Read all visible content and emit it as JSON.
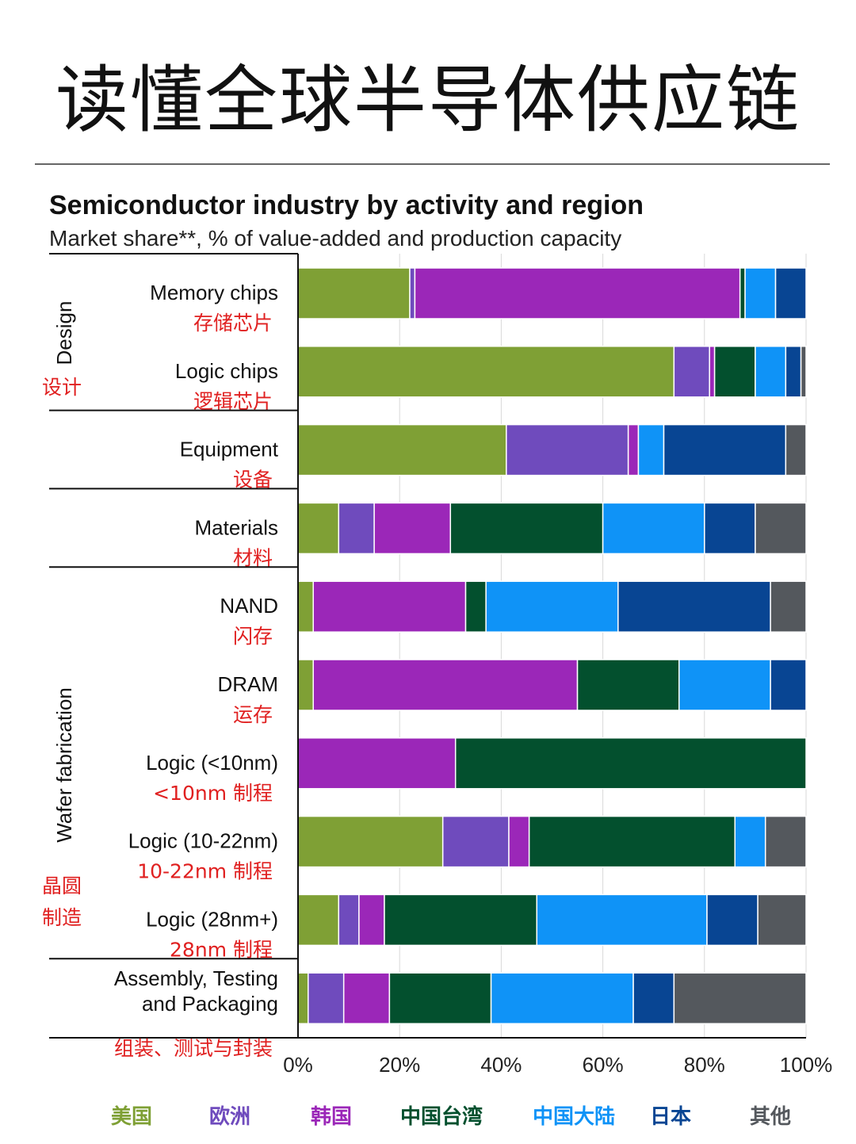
{
  "page_title": "读懂全球半导体供应链",
  "chart_data": {
    "type": "bar",
    "orientation": "horizontal",
    "stacked": true,
    "title": "Semiconductor industry by activity and region",
    "subtitle": "Market share**, % of value-added and production capacity",
    "xlim": [
      0,
      100
    ],
    "x_ticks": [
      "0%",
      "20%",
      "40%",
      "60%",
      "80%",
      "100%"
    ],
    "grid": true,
    "legend_position": "bottom",
    "groups": [
      {
        "label": "Design",
        "label_cn": "设计",
        "rows": 2
      },
      {
        "label": "",
        "label_cn": "",
        "rows": 1
      },
      {
        "label": "",
        "label_cn": "",
        "rows": 1
      },
      {
        "label": "Wafer fabrication",
        "label_cn": "晶圆\n制造",
        "rows": 5
      },
      {
        "label": "",
        "label_cn": "",
        "rows": 1
      }
    ],
    "categories": [
      {
        "en": "Memory chips",
        "cn": "存储芯片"
      },
      {
        "en": "Logic chips",
        "cn": "逻辑芯片"
      },
      {
        "en": "Equipment",
        "cn": "设备"
      },
      {
        "en": "Materials",
        "cn": "材料"
      },
      {
        "en": "NAND",
        "cn": "闪存"
      },
      {
        "en": "DRAM",
        "cn": "运存"
      },
      {
        "en": "Logic (<10nm)",
        "cn": "<10nm 制程"
      },
      {
        "en": "Logic (10-22nm)",
        "cn": "10-22nm 制程"
      },
      {
        "en": "Logic (28nm+)",
        "cn": "28nm 制程"
      },
      {
        "en": "Assembly, Testing\nand Packaging",
        "cn": "组装、测试与封装"
      }
    ],
    "series": [
      {
        "name": "美国",
        "color": "#7fa035",
        "values": [
          22,
          74,
          41,
          8,
          3,
          3,
          0,
          28.5,
          8,
          2
        ]
      },
      {
        "name": "欧洲",
        "color": "#6f4bbd",
        "values": [
          1,
          7,
          24,
          7,
          0,
          0,
          0,
          13,
          4,
          7
        ]
      },
      {
        "name": "韩国",
        "color": "#9b27b8",
        "values": [
          64,
          1,
          2,
          15,
          30,
          52,
          31,
          4,
          5,
          9
        ]
      },
      {
        "name": "中国台湾",
        "color": "#03502e",
        "values": [
          1,
          8,
          0,
          30,
          4,
          20,
          69,
          40.5,
          30,
          20
        ]
      },
      {
        "name": "中国大陆",
        "color": "#0f93f7",
        "values": [
          6,
          6,
          5,
          20,
          26,
          18,
          0,
          6,
          33.5,
          28
        ]
      },
      {
        "name": "日本",
        "color": "#084593",
        "values": [
          6,
          3,
          24,
          10,
          30,
          7,
          0,
          0,
          10,
          8
        ]
      },
      {
        "name": "其他",
        "color": "#54585d",
        "values": [
          0,
          1,
          4,
          10,
          7,
          0,
          0,
          8,
          9.5,
          26
        ]
      }
    ]
  }
}
